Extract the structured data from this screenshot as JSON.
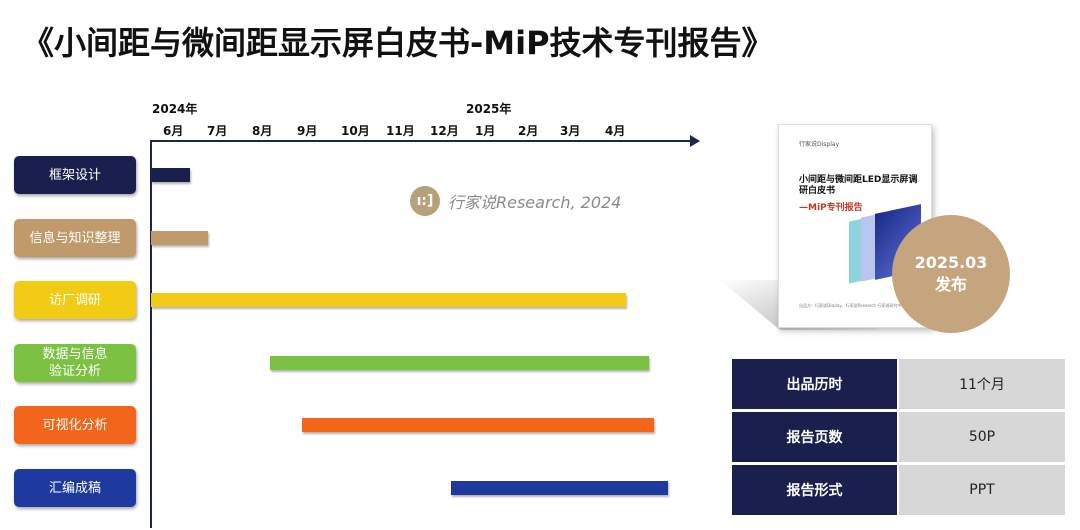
{
  "title": "《小间距与微间距显示屏白皮书-MiP技术专刊报告》",
  "timeline": {
    "years": [
      "2024年",
      "2025年"
    ],
    "months": [
      "6月",
      "7月",
      "8月",
      "9月",
      "10月",
      "11月",
      "12月",
      "1月",
      "2月",
      "3月",
      "4月"
    ]
  },
  "tasks": [
    {
      "label": "框架设计",
      "color": "#1a1f4d",
      "start_month": "6月",
      "end_month": "6月"
    },
    {
      "label": "信息与知识整理",
      "color": "#c09a6b",
      "start_month": "6月",
      "end_month": "7月"
    },
    {
      "label": "访厂调研",
      "color": "#f2cc14",
      "start_month": "6月",
      "end_month": "4月"
    },
    {
      "label": "数据与信息\n验证分析",
      "color": "#7cc142",
      "start_month": "8月",
      "end_month": "4月"
    },
    {
      "label": "可视化分析",
      "color": "#f2661c",
      "start_month": "9月",
      "end_month": "4月"
    },
    {
      "label": "汇编成稿",
      "color": "#1f3a9e",
      "start_month": "1月",
      "end_month": "4月"
    }
  ],
  "watermark": {
    "logo": "ı:]",
    "text": "行家说Research, 2024"
  },
  "cover": {
    "logo": "行家说Display",
    "title": "小间距与微间距LED显示屏调研白皮书",
    "subtitle": "—MiP专刊报告",
    "footer": "出品方：行家说Display、行家说Research 行家说研究中心"
  },
  "release_badge": {
    "date": "2025.03",
    "label": "发布"
  },
  "info": [
    {
      "key": "出品历时",
      "value": "11个月"
    },
    {
      "key": "报告页数",
      "value": "50P"
    },
    {
      "key": "报告形式",
      "value": "PPT"
    }
  ],
  "colors": {
    "navy": "#1a1f4d",
    "gold": "#c4a57d",
    "grey": "#d7d7d7"
  }
}
